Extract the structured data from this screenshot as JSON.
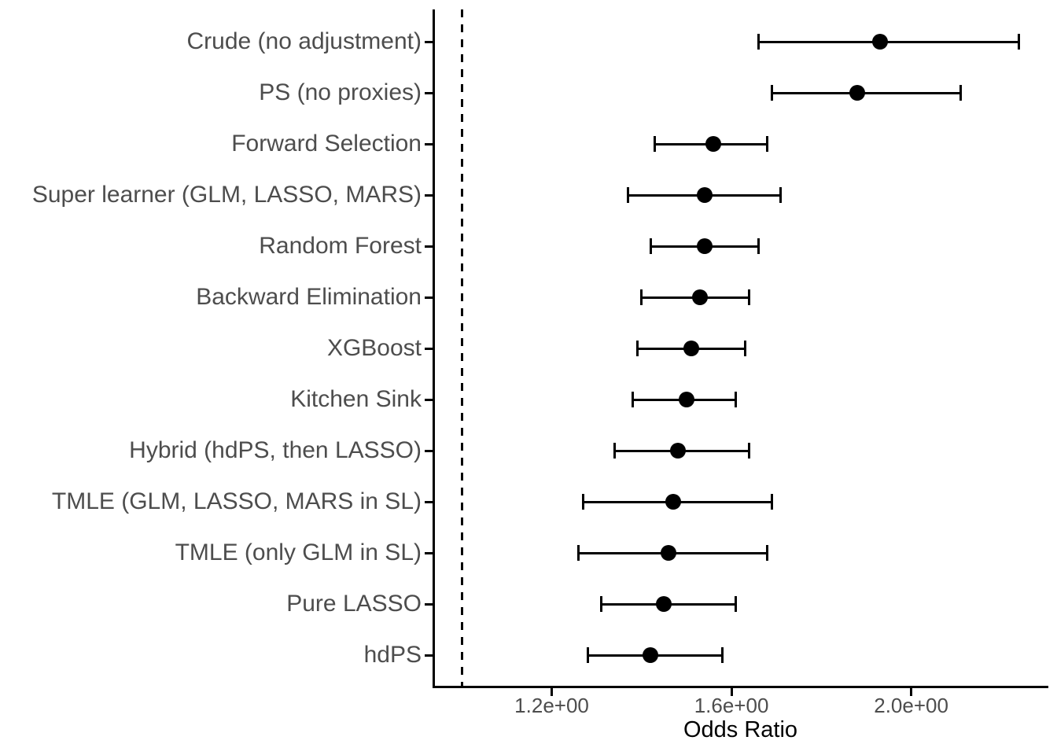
{
  "chart_data": {
    "type": "scatter",
    "subtype": "forest-plot-dot-whisker",
    "title": "",
    "xlabel": "Odds Ratio",
    "ylabel": "",
    "x_axis": {
      "scale": "linear",
      "range": [
        0.94,
        2.3
      ],
      "ticks": [
        {
          "value": 1.2,
          "label": "1.2e+00"
        },
        {
          "value": 1.6,
          "label": "1.6e+00"
        },
        {
          "value": 2.0,
          "label": "2.0e+00"
        }
      ],
      "grid": false
    },
    "reference_line": {
      "value": 1.0,
      "style": "dashed",
      "orientation": "vertical"
    },
    "legend": "none",
    "categories": [
      "Crude (no adjustment)",
      "PS (no proxies)",
      "Forward Selection",
      "Super learner (GLM, LASSO, MARS)",
      "Random Forest",
      "Backward Elimination",
      "XGBoost",
      "Kitchen Sink",
      "Hybrid (hdPS, then LASSO)",
      "TMLE (GLM, LASSO, MARS in SL)",
      "TMLE (only GLM in SL)",
      "Pure LASSO",
      "hdPS"
    ],
    "rows": [
      {
        "label": "Crude (no adjustment)",
        "or": 1.93,
        "lo": 1.66,
        "hi": 2.24
      },
      {
        "label": "PS (no proxies)",
        "or": 1.88,
        "lo": 1.69,
        "hi": 2.11
      },
      {
        "label": "Forward Selection",
        "or": 1.56,
        "lo": 1.43,
        "hi": 1.68
      },
      {
        "label": "Super learner (GLM, LASSO, MARS)",
        "or": 1.54,
        "lo": 1.37,
        "hi": 1.71
      },
      {
        "label": "Random Forest",
        "or": 1.54,
        "lo": 1.42,
        "hi": 1.66
      },
      {
        "label": "Backward Elimination",
        "or": 1.53,
        "lo": 1.4,
        "hi": 1.64
      },
      {
        "label": "XGBoost",
        "or": 1.51,
        "lo": 1.39,
        "hi": 1.63
      },
      {
        "label": "Kitchen Sink",
        "or": 1.5,
        "lo": 1.38,
        "hi": 1.61
      },
      {
        "label": "Hybrid (hdPS, then LASSO)",
        "or": 1.48,
        "lo": 1.34,
        "hi": 1.64
      },
      {
        "label": "TMLE (GLM, LASSO, MARS in SL)",
        "or": 1.47,
        "lo": 1.27,
        "hi": 1.69
      },
      {
        "label": "TMLE (only GLM in SL)",
        "or": 1.46,
        "lo": 1.26,
        "hi": 1.68
      },
      {
        "label": "Pure LASSO",
        "or": 1.45,
        "lo": 1.31,
        "hi": 1.61
      },
      {
        "label": "hdPS",
        "or": 1.42,
        "lo": 1.28,
        "hi": 1.58
      }
    ]
  },
  "colors": {
    "background": "#ffffff",
    "point": "#000000",
    "ci_line": "#000000",
    "axis_line": "#000000",
    "reference_line": "#000000",
    "tick_label": "#4d4d4d",
    "category_label": "#4d4d4d",
    "axis_title": "#000000"
  }
}
